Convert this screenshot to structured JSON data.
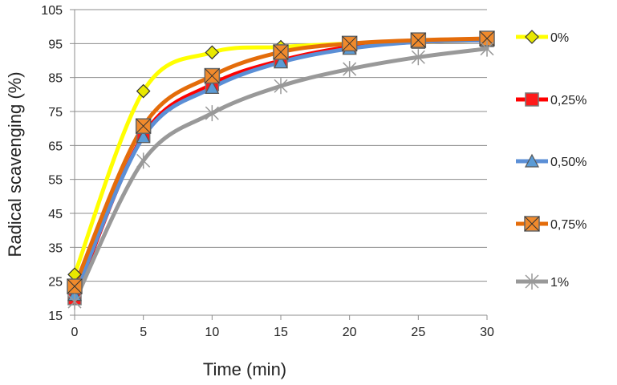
{
  "chart_data": {
    "type": "line",
    "title": "",
    "xlabel": "Time (min)",
    "ylabel": "Radical scavenging (%)",
    "x": [
      0,
      5,
      10,
      15,
      20,
      25,
      30
    ],
    "xlim": [
      0,
      30
    ],
    "ylim": [
      15,
      105
    ],
    "xticks": [
      "0",
      "5",
      "10",
      "15",
      "20",
      "25",
      "30"
    ],
    "yticks": [
      "15",
      "25",
      "35",
      "45",
      "55",
      "65",
      "75",
      "85",
      "95",
      "105"
    ],
    "grid": "horizontal",
    "legend_position": "right",
    "series": [
      {
        "name": "0%",
        "color": "#ffff00",
        "marker": "diamond",
        "marker_color": "#e8e800",
        "values": [
          27,
          81,
          92.4,
          94,
          95,
          95.5,
          96
        ]
      },
      {
        "name": "0,25%",
        "color": "#ff0000",
        "marker": "square",
        "marker_color": "#ff1a1a",
        "values": [
          20,
          68,
          83,
          90,
          94,
          95.5,
          96
        ]
      },
      {
        "name": "0,50%",
        "color": "#5b8fd6",
        "marker": "triangle",
        "marker_color": "#5b9bd5",
        "values": [
          21,
          67.5,
          82,
          89.5,
          93.5,
          95.5,
          96
        ]
      },
      {
        "name": "0,75%",
        "color": "#e46c0a",
        "marker": "x-square",
        "marker_color": "#f08a2c",
        "values": [
          23.5,
          70.7,
          85.5,
          92.5,
          95,
          96,
          96.5
        ]
      },
      {
        "name": "1%",
        "color": "#999999",
        "marker": "star",
        "marker_color": "#999999",
        "values": [
          19,
          60.5,
          74.5,
          82.5,
          87.5,
          91,
          93.5
        ]
      }
    ]
  }
}
